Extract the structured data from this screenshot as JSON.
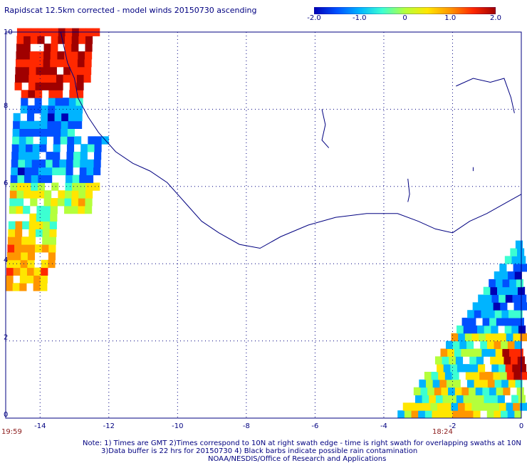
{
  "title": "Rapidscat 12.5km corrected - model winds 20150730 ascending",
  "colorbar": {
    "tick_labels": [
      "-2.0",
      "-1.0",
      "0",
      "1.0",
      "2.0"
    ],
    "tick_values": [
      -2.0,
      -1.0,
      0.0,
      1.0,
      2.0
    ],
    "range": [
      -2.0,
      2.0
    ],
    "colors": [
      "#0000b4",
      "#0050ff",
      "#00b4ff",
      "#3cffd2",
      "#b4ff3c",
      "#ffe600",
      "#ff9600",
      "#ff2800",
      "#a00000"
    ]
  },
  "axes": {
    "lon_ticks": [
      "-14",
      "-12",
      "-10",
      "-8",
      "-6",
      "-4",
      "-2",
      "0"
    ],
    "lat_ticks": [
      "0",
      "2",
      "4",
      "6",
      "8",
      "10"
    ],
    "lon_range": [
      -15,
      0
    ],
    "lat_range": [
      0,
      10
    ],
    "grid": "dotted"
  },
  "time_labels": {
    "left": "19:59",
    "right": "18:24"
  },
  "notes": {
    "line1": "Note: 1) Times are GMT 2)Times correspond to 10N at right swath edge - time is right swath for overlapping swaths at 10N",
    "line2": "3)Data buffer is 22 hrs for 20150730 4) Black barbs indicate possible rain contamination",
    "line3": "NOAA/NESDIS/Office of Research and Applications"
  },
  "chart_data": {
    "type": "heatmap",
    "title": "Rapidscat 12.5km corrected - model winds 20150730 ascending",
    "xlabel": "",
    "ylabel": "",
    "xlim": [
      -15,
      0
    ],
    "ylim": [
      0,
      10
    ],
    "value_range": [
      -2.0,
      2.0
    ],
    "swaths": [
      {
        "name": "west",
        "lon_range": [
          -15,
          -11.5
        ],
        "lat_range": [
          3.3,
          10
        ]
      },
      {
        "name": "east",
        "lon_range": [
          -3.6,
          0
        ],
        "lat_range": [
          0,
          4.5
        ]
      }
    ]
  }
}
